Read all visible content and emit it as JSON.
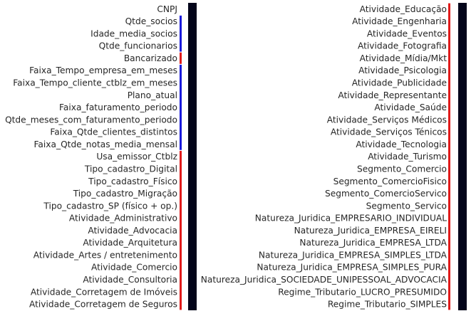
{
  "chart_data": [
    {
      "type": "heatmap",
      "labels": [
        "CNPJ",
        "Qtde_socios",
        "Idade_media_socios",
        "Qtde_funcionarios",
        "Bancarizado",
        "Faixa_Tempo_empresa_em_meses",
        "Faixa_Tempo_cliente_ctblz_em_meses",
        "Plano_atual",
        "Faixa_faturamento_periodo",
        "Qtde_meses_com_faturamento_periodo",
        "Faixa_Qtde_clientes_distintos",
        "Faixa_Qtde_notas_media_mensal",
        "Usa_emissor_Ctblz",
        "Tipo_cadastro_Digital",
        "Tipo_cadastro_Físico",
        "Tipo_cadastro_Migração",
        "Tipo_cadastro_SP (físico + op.)",
        "Atividade_Administrativo",
        "Atividade_Advocacia",
        "Atividade_Arquitetura",
        "Atividade_Artes / entretenimento",
        "Atividade_Comercio",
        "Atividade_Consultoria",
        "Atividade_Corretagem de Imóveis",
        "Atividade_Corretagem de Seguros"
      ],
      "groups": [
        {
          "start": 1,
          "end": 3,
          "color": "#1a1adb"
        },
        {
          "start": 4,
          "end": 4,
          "color": "#e01b1b"
        },
        {
          "start": 5,
          "end": 11,
          "color": "#1a1adb"
        },
        {
          "start": 12,
          "end": 24,
          "color": "#e01b1b"
        }
      ],
      "cell_color": "#03051a"
    },
    {
      "type": "heatmap",
      "labels": [
        "Atividade_Educação",
        "Atividade_Engenharia",
        "Atividade_Eventos",
        "Atividade_Fotografia",
        "Atividade_Mídia/Mkt",
        "Atividade_Psicologia",
        "Atividade_Publicidade",
        "Atividade_Representante",
        "Atividade_Saúde",
        "Atividade_Serviços Médicos",
        "Atividade_Serviços Ténicos",
        "Atividade_Tecnologia",
        "Atividade_Turismo",
        "Segmento_Comercio",
        "Segmento_ComercioFisico",
        "Segmento_ComercioServico",
        "Segmento_Servico",
        "Natureza_Juridica_EMPRESARIO_INDIVIDUAL",
        "Natureza_Juridica_EMPRESA_EIRELI",
        "Natureza_Juridica_EMPRESA_LTDA",
        "Natureza_Juridica_EMPRESA_SIMPLES_LTDA",
        "Natureza_Juridica_EMPRESA_SIMPLES_PURA",
        "Natureza_Juridica_SOCIEDADE_UNIPESSOAL_ADVOCACIA",
        "Regime_Tributario_LUCRO_PRESUMIDO",
        "Regime_Tributario_SIMPLES"
      ],
      "groups": [
        {
          "start": 0,
          "end": 24,
          "color": "#e01b1b"
        }
      ],
      "cell_color": "#03051a"
    }
  ]
}
